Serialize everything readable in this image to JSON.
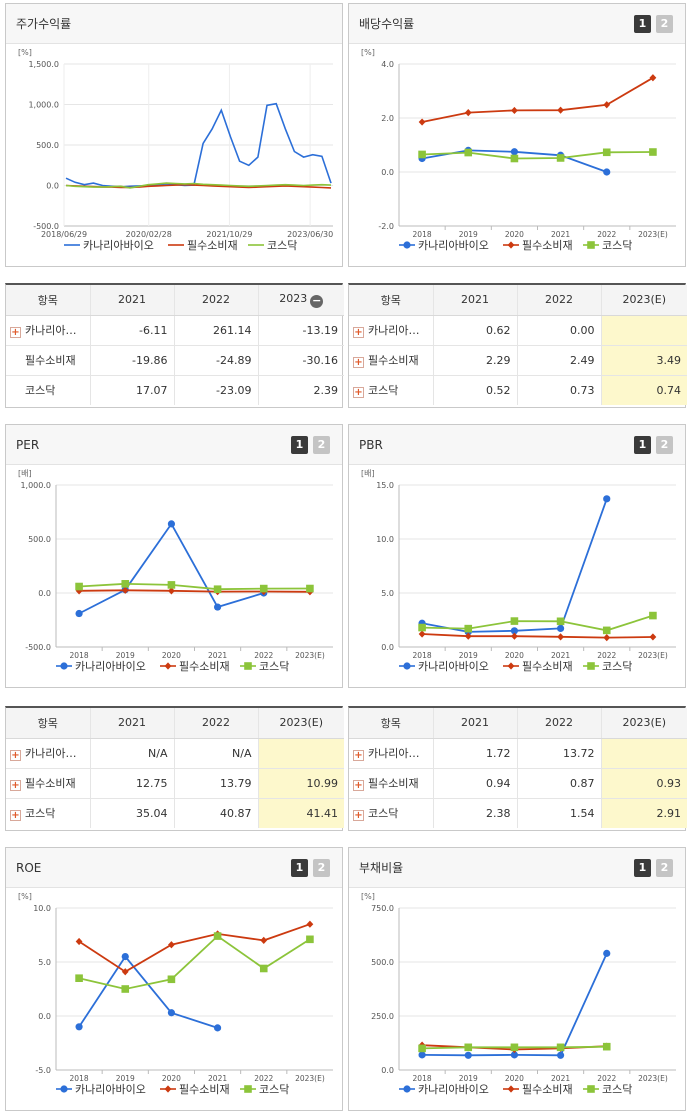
{
  "panels": {
    "price": {
      "title": "주가수익률"
    },
    "dividend": {
      "title": "배당수익률"
    },
    "per": {
      "title": "PER"
    },
    "pbr": {
      "title": "PBR"
    },
    "roe": {
      "title": "ROE"
    },
    "debt": {
      "title": "부채비율"
    }
  },
  "pager": {
    "page1": "1",
    "page2": "2"
  },
  "legend": {
    "s1": "카나리아바이오",
    "s2": "필수소비재",
    "s3": "코스닥"
  },
  "colors": {
    "s1": "#2c6fd8",
    "s2": "#cc3a10",
    "s3": "#8cc43a"
  },
  "table_price": {
    "header": [
      "항목",
      "2021",
      "2022",
      "2023"
    ],
    "rows": [
      {
        "name": "카나리아…",
        "expand": true,
        "values": [
          "-6.11",
          "261.14",
          "-13.19"
        ]
      },
      {
        "name": "필수소비재",
        "expand": false,
        "values": [
          "-19.86",
          "-24.89",
          "-30.16"
        ]
      },
      {
        "name": "코스닥",
        "expand": false,
        "values": [
          "17.07",
          "-23.09",
          "2.39"
        ]
      }
    ]
  },
  "table_dividend": {
    "header": [
      "항목",
      "2021",
      "2022",
      "2023(E)"
    ],
    "rows": [
      {
        "name": "카나리아…",
        "expand": true,
        "values": [
          "0.62",
          "0.00",
          ""
        ]
      },
      {
        "name": "필수소비재",
        "expand": true,
        "values": [
          "2.29",
          "2.49",
          "3.49"
        ]
      },
      {
        "name": "코스닥",
        "expand": true,
        "values": [
          "0.52",
          "0.73",
          "0.74"
        ]
      }
    ]
  },
  "table_per": {
    "header": [
      "항목",
      "2021",
      "2022",
      "2023(E)"
    ],
    "rows": [
      {
        "name": "카나리아…",
        "expand": true,
        "values": [
          "N/A",
          "N/A",
          ""
        ]
      },
      {
        "name": "필수소비재",
        "expand": true,
        "values": [
          "12.75",
          "13.79",
          "10.99"
        ]
      },
      {
        "name": "코스닥",
        "expand": true,
        "values": [
          "35.04",
          "40.87",
          "41.41"
        ]
      }
    ]
  },
  "table_pbr": {
    "header": [
      "항목",
      "2021",
      "2022",
      "2023(E)"
    ],
    "rows": [
      {
        "name": "카나리아…",
        "expand": true,
        "values": [
          "1.72",
          "13.72",
          ""
        ]
      },
      {
        "name": "필수소비재",
        "expand": true,
        "values": [
          "0.94",
          "0.87",
          "0.93"
        ]
      },
      {
        "name": "코스닥",
        "expand": true,
        "values": [
          "2.38",
          "1.54",
          "2.91"
        ]
      }
    ]
  },
  "chart_data": [
    {
      "id": "price",
      "type": "line",
      "unit": "[%]",
      "xlabels": [
        "2018/06/29",
        "2020/02/28",
        "2021/10/29",
        "2023/06/30"
      ],
      "yticks": [
        1500,
        1000,
        500,
        0,
        -500
      ],
      "ytick_labels": [
        "1,500.0",
        "1,000.0",
        "500.0",
        "0.0",
        "-500.0"
      ],
      "ylim": [
        -500,
        1500
      ],
      "series": [
        {
          "name": "카나리아바이오",
          "values": [
            90,
            40,
            10,
            30,
            0,
            -10,
            -20,
            -10,
            -5,
            0,
            10,
            20,
            10,
            0,
            5,
            520,
            700,
            930,
            600,
            300,
            250,
            350,
            990,
            1010,
            700,
            420,
            350,
            380,
            360,
            30
          ]
        },
        {
          "name": "필수소비재",
          "values": [
            0,
            -5,
            -10,
            -15,
            -20,
            -20,
            -25,
            -25,
            -20,
            -10,
            -5,
            0,
            5,
            10,
            5,
            0,
            -5,
            -10,
            -15,
            -20,
            -25,
            -20,
            -15,
            -10,
            -5,
            -10,
            -15,
            -20,
            -25,
            -30
          ]
        },
        {
          "name": "코스닥",
          "values": [
            0,
            -10,
            -15,
            -20,
            -20,
            -15,
            -10,
            -30,
            -10,
            10,
            20,
            30,
            25,
            20,
            25,
            15,
            10,
            5,
            0,
            -5,
            -10,
            -5,
            0,
            5,
            10,
            5,
            0,
            5,
            10,
            5
          ]
        }
      ]
    },
    {
      "id": "dividend",
      "type": "line",
      "unit": "[%]",
      "categories": [
        "2018",
        "2019",
        "2020",
        "2021",
        "2022",
        "2023(E)"
      ],
      "yticks": [
        4,
        2,
        0,
        -2
      ],
      "ytick_labels": [
        "4.0",
        "2.0",
        "0.0",
        "-2.0"
      ],
      "ylim": [
        -2,
        4
      ],
      "series": [
        {
          "name": "카나리아바이오",
          "values": [
            0.5,
            0.8,
            0.75,
            0.62,
            0.0,
            null
          ]
        },
        {
          "name": "필수소비재",
          "values": [
            1.85,
            2.2,
            2.28,
            2.29,
            2.49,
            3.49
          ]
        },
        {
          "name": "코스닥",
          "values": [
            0.65,
            0.72,
            0.5,
            0.52,
            0.73,
            0.74
          ]
        }
      ]
    },
    {
      "id": "per",
      "type": "line",
      "unit": "[배]",
      "categories": [
        "2018",
        "2019",
        "2020",
        "2021",
        "2022",
        "2023(E)"
      ],
      "yticks": [
        1000,
        500,
        0,
        -500
      ],
      "ytick_labels": [
        "1,000.0",
        "500.0",
        "0.0",
        "-500.0"
      ],
      "ylim": [
        -500,
        1000
      ],
      "series": [
        {
          "name": "카나리아바이오",
          "values": [
            -190,
            30,
            640,
            -130,
            0,
            null
          ]
        },
        {
          "name": "필수소비재",
          "values": [
            20,
            25,
            20,
            12.75,
            13.79,
            10.99
          ]
        },
        {
          "name": "코스닥",
          "values": [
            60,
            85,
            75,
            35.04,
            40.87,
            41.41
          ]
        }
      ]
    },
    {
      "id": "pbr",
      "type": "line",
      "unit": "[배]",
      "categories": [
        "2018",
        "2019",
        "2020",
        "2021",
        "2022",
        "2023(E)"
      ],
      "yticks": [
        15,
        10,
        5,
        0
      ],
      "ytick_labels": [
        "15.0",
        "10.0",
        "5.0",
        "0.0"
      ],
      "ylim": [
        0,
        15
      ],
      "series": [
        {
          "name": "카나리아바이오",
          "values": [
            2.2,
            1.4,
            1.5,
            1.72,
            13.72,
            null
          ]
        },
        {
          "name": "필수소비재",
          "values": [
            1.2,
            1.0,
            1.0,
            0.94,
            0.87,
            0.93
          ]
        },
        {
          "name": "코스닥",
          "values": [
            1.8,
            1.7,
            2.4,
            2.38,
            1.54,
            2.91
          ]
        }
      ]
    },
    {
      "id": "roe",
      "type": "line",
      "unit": "[%]",
      "categories": [
        "2018",
        "2019",
        "2020",
        "2021",
        "2022",
        "2023(E)"
      ],
      "yticks": [
        10,
        5,
        0,
        -5
      ],
      "ytick_labels": [
        "10.0",
        "5.0",
        "0.0",
        "-5.0"
      ],
      "ylim": [
        -5,
        10
      ],
      "series": [
        {
          "name": "카나리아바이오",
          "values": [
            -1.0,
            5.5,
            0.3,
            -1.1,
            null,
            null
          ]
        },
        {
          "name": "필수소비재",
          "values": [
            6.9,
            4.1,
            6.6,
            7.6,
            7.0,
            8.5
          ]
        },
        {
          "name": "코스닥",
          "values": [
            3.5,
            2.5,
            3.4,
            7.4,
            4.4,
            7.1
          ]
        }
      ]
    },
    {
      "id": "debt",
      "type": "line",
      "unit": "[%]",
      "categories": [
        "2018",
        "2019",
        "2020",
        "2021",
        "2022",
        "2023(E)"
      ],
      "yticks": [
        750,
        500,
        250,
        0
      ],
      "ytick_labels": [
        "750.0",
        "500.0",
        "250.0",
        "0.0"
      ],
      "ylim": [
        0,
        750
      ],
      "series": [
        {
          "name": "카나리아바이오",
          "values": [
            70,
            68,
            70,
            68,
            540,
            null
          ]
        },
        {
          "name": "필수소비재",
          "values": [
            115,
            105,
            95,
            100,
            110,
            null
          ]
        },
        {
          "name": "코스닥",
          "values": [
            100,
            105,
            105,
            105,
            108,
            null
          ]
        }
      ]
    }
  ]
}
